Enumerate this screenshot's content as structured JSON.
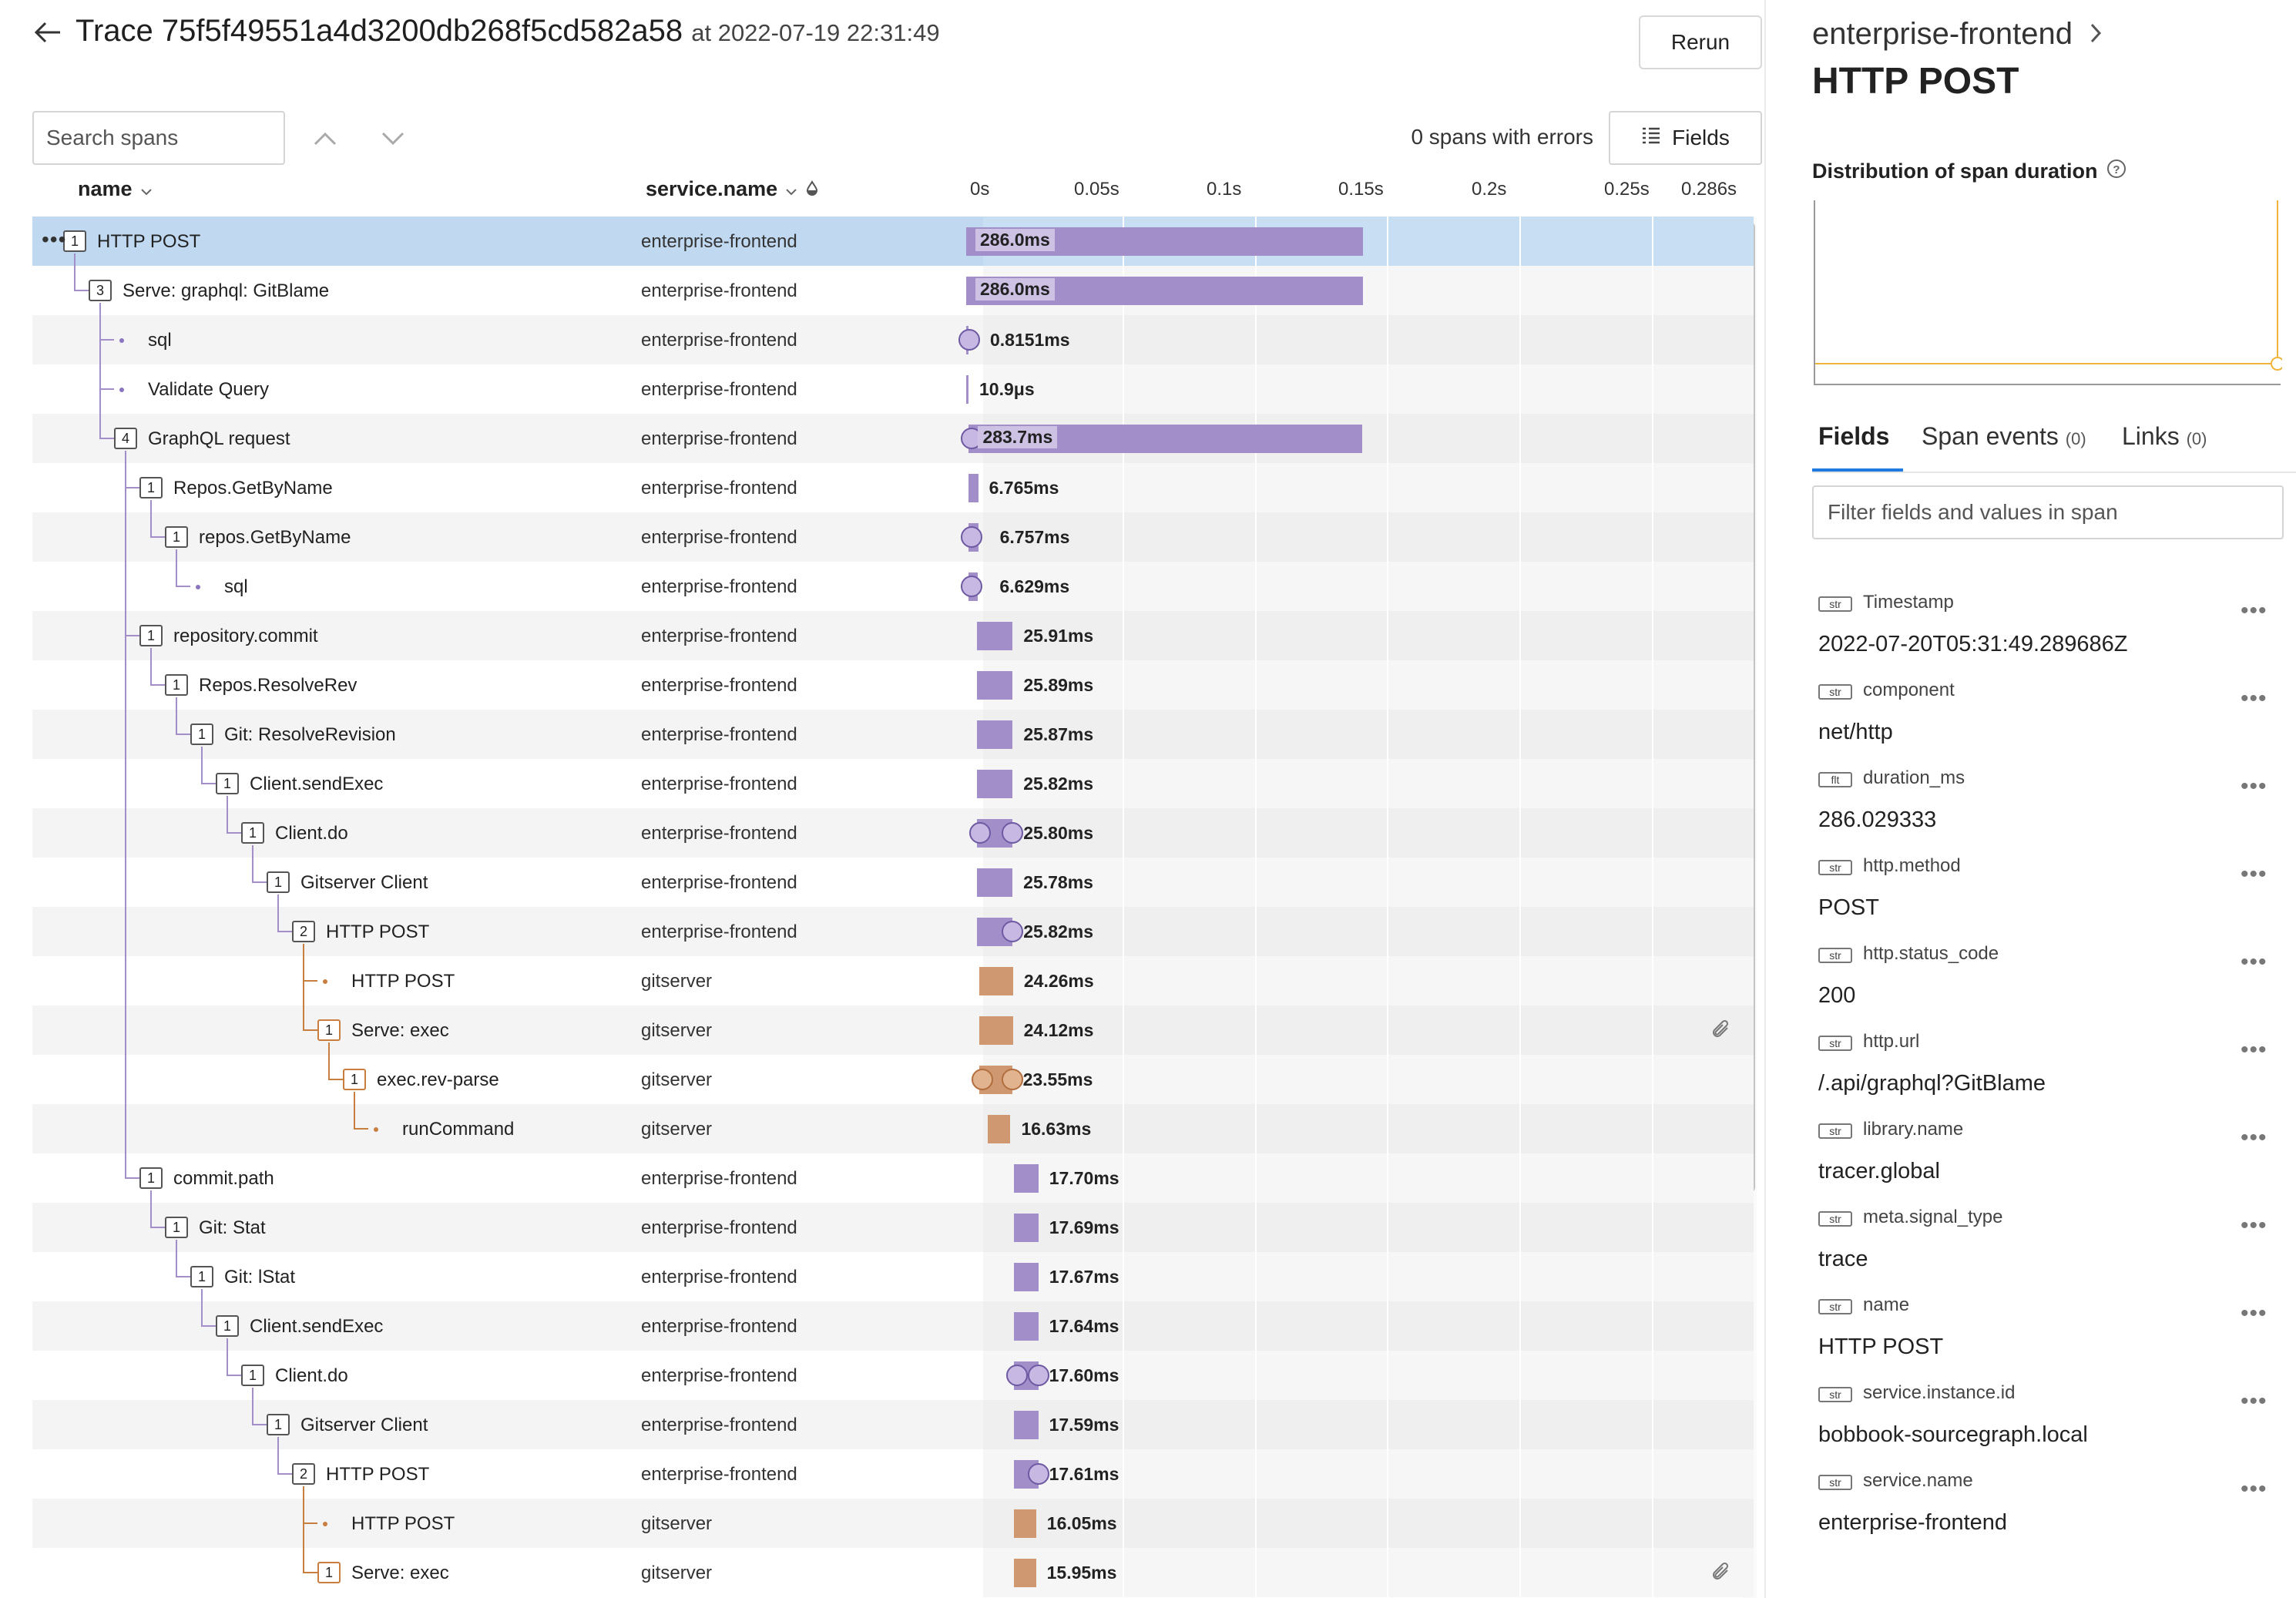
{
  "header": {
    "title": "Trace 75f5f49551a4d3200db268f5cd582a58",
    "timestamp": "at 2022-07-19 22:31:49",
    "rerun_label": "Rerun"
  },
  "toolbar": {
    "search_placeholder": "Search spans",
    "errors_text": "0 spans with errors",
    "fields_label": "Fields"
  },
  "columns": {
    "name": "name",
    "service": "service.name"
  },
  "timeline_ticks": [
    "0s",
    "0.05s",
    "0.1s",
    "0.15s",
    "0.2s",
    "0.25s",
    "0.286s"
  ],
  "spans": [
    {
      "name": "HTTP POST",
      "service": "enterprise-frontend",
      "duration": "286.0ms",
      "count": "1"
    },
    {
      "name": "Serve: graphql: GitBlame",
      "service": "enterprise-frontend",
      "duration": "286.0ms",
      "count": "3"
    },
    {
      "name": "sql",
      "service": "enterprise-frontend",
      "duration": "0.8151ms",
      "count": ""
    },
    {
      "name": "Validate Query",
      "service": "enterprise-frontend",
      "duration": "10.9μs",
      "count": ""
    },
    {
      "name": "GraphQL request",
      "service": "enterprise-frontend",
      "duration": "283.7ms",
      "count": "4"
    },
    {
      "name": "Repos.GetByName",
      "service": "enterprise-frontend",
      "duration": "6.765ms",
      "count": "1"
    },
    {
      "name": "repos.GetByName",
      "service": "enterprise-frontend",
      "duration": "6.757ms",
      "count": "1"
    },
    {
      "name": "sql",
      "service": "enterprise-frontend",
      "duration": "6.629ms",
      "count": ""
    },
    {
      "name": "repository.commit",
      "service": "enterprise-frontend",
      "duration": "25.91ms",
      "count": "1"
    },
    {
      "name": "Repos.ResolveRev",
      "service": "enterprise-frontend",
      "duration": "25.89ms",
      "count": "1"
    },
    {
      "name": "Git: ResolveRevision",
      "service": "enterprise-frontend",
      "duration": "25.87ms",
      "count": "1"
    },
    {
      "name": "Client.sendExec",
      "service": "enterprise-frontend",
      "duration": "25.82ms",
      "count": "1"
    },
    {
      "name": "Client.do",
      "service": "enterprise-frontend",
      "duration": "25.80ms",
      "count": "1"
    },
    {
      "name": "Gitserver Client",
      "service": "enterprise-frontend",
      "duration": "25.78ms",
      "count": "1"
    },
    {
      "name": "HTTP POST",
      "service": "enterprise-frontend",
      "duration": "25.82ms",
      "count": "2"
    },
    {
      "name": "HTTP POST",
      "service": "gitserver",
      "duration": "24.26ms",
      "count": ""
    },
    {
      "name": "Serve: exec",
      "service": "gitserver",
      "duration": "24.12ms",
      "count": "1"
    },
    {
      "name": "exec.rev-parse",
      "service": "gitserver",
      "duration": "23.55ms",
      "count": "1"
    },
    {
      "name": "runCommand",
      "service": "gitserver",
      "duration": "16.63ms",
      "count": ""
    },
    {
      "name": "commit.path",
      "service": "enterprise-frontend",
      "duration": "17.70ms",
      "count": "1"
    },
    {
      "name": "Git: Stat",
      "service": "enterprise-frontend",
      "duration": "17.69ms",
      "count": "1"
    },
    {
      "name": "Git: lStat",
      "service": "enterprise-frontend",
      "duration": "17.67ms",
      "count": "1"
    },
    {
      "name": "Client.sendExec",
      "service": "enterprise-frontend",
      "duration": "17.64ms",
      "count": "1"
    },
    {
      "name": "Client.do",
      "service": "enterprise-frontend",
      "duration": "17.60ms",
      "count": "1"
    },
    {
      "name": "Gitserver Client",
      "service": "enterprise-frontend",
      "duration": "17.59ms",
      "count": "1"
    },
    {
      "name": "HTTP POST",
      "service": "enterprise-frontend",
      "duration": "17.61ms",
      "count": "2"
    },
    {
      "name": "HTTP POST",
      "service": "gitserver",
      "duration": "16.05ms",
      "count": ""
    },
    {
      "name": "Serve: exec",
      "service": "gitserver",
      "duration": "15.95ms",
      "count": "1"
    }
  ],
  "panel": {
    "service": "enterprise-frontend",
    "span_name": "HTTP POST",
    "distribution_title": "Distribution of span duration",
    "tabs": [
      {
        "label": "Fields",
        "count": ""
      },
      {
        "label": "Span events",
        "count": "(0)"
      },
      {
        "label": "Links",
        "count": "(0)"
      }
    ],
    "filter_placeholder": "Filter fields and values in span",
    "fields": [
      {
        "type": "str",
        "key": "Timestamp",
        "value": "2022-07-20T05:31:49.289686Z"
      },
      {
        "type": "str",
        "key": "component",
        "value": "net/http"
      },
      {
        "type": "flt",
        "key": "duration_ms",
        "value": "286.029333"
      },
      {
        "type": "str",
        "key": "http.method",
        "value": "POST"
      },
      {
        "type": "str",
        "key": "http.status_code",
        "value": "200"
      },
      {
        "type": "str",
        "key": "http.url",
        "value": "/.api/graphql?GitBlame"
      },
      {
        "type": "str",
        "key": "library.name",
        "value": "tracer.global"
      },
      {
        "type": "str",
        "key": "meta.signal_type",
        "value": "trace"
      },
      {
        "type": "str",
        "key": "name",
        "value": "HTTP POST"
      },
      {
        "type": "str",
        "key": "service.instance.id",
        "value": "bobbook-sourcegraph.local"
      },
      {
        "type": "str",
        "key": "service.name",
        "value": "enterprise-frontend"
      }
    ]
  },
  "colors": {
    "accent": "#1f7be0",
    "frontend_bar": "#a28fca",
    "gitserver_bar": "#cf9870",
    "selected_row": "#c0d9f0"
  }
}
